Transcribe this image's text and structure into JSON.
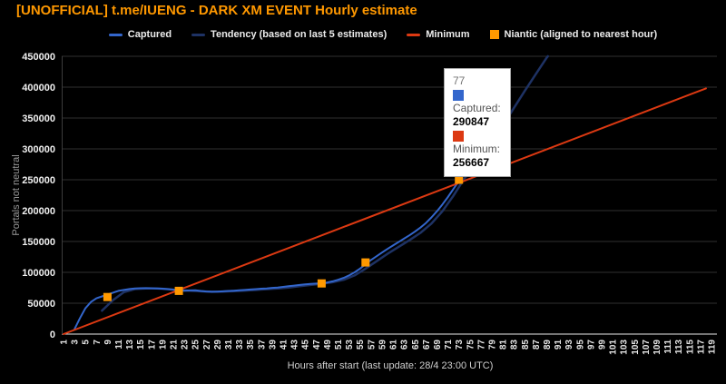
{
  "page": {
    "background": "#000000"
  },
  "title": {
    "text": "[UNOFFICIAL] t.me/IUENG - DARK XM EVENT Hourly estimate",
    "color": "#ff9800"
  },
  "tooltip": {
    "x_value": "77",
    "rows": [
      {
        "label": "Captured:",
        "value": "290847",
        "color": "#3366cc"
      },
      {
        "label": "Minimum:",
        "value": "256667",
        "color": "#dc3912"
      }
    ]
  },
  "chart_data": {
    "type": "line",
    "title": "[UNOFFICIAL] t.me/IUENG - DARK XM EVENT Hourly estimate",
    "xlabel": "Hours after start (last update: 28/4 23:00 UTC)",
    "ylabel": "Portals not neutral",
    "xlim": [
      1,
      119
    ],
    "ylim": [
      0,
      450000
    ],
    "grid": "horizontal",
    "legend_position": "top",
    "x_ticks": [
      1,
      3,
      5,
      7,
      9,
      11,
      13,
      15,
      17,
      19,
      21,
      23,
      25,
      27,
      29,
      31,
      33,
      35,
      37,
      39,
      41,
      43,
      45,
      47,
      49,
      51,
      53,
      55,
      57,
      59,
      61,
      63,
      65,
      67,
      69,
      71,
      73,
      75,
      77,
      79,
      81,
      83,
      85,
      87,
      89,
      91,
      93,
      95,
      97,
      99,
      101,
      103,
      105,
      107,
      109,
      111,
      113,
      115,
      117,
      119
    ],
    "y_ticks": [
      0,
      50000,
      100000,
      150000,
      200000,
      250000,
      300000,
      350000,
      400000,
      450000
    ],
    "series": [
      {
        "name": "Captured",
        "slug": "captured",
        "color": "#3366cc",
        "width": 2,
        "type": "line",
        "points": [
          [
            3,
            8000
          ],
          [
            4,
            26000
          ],
          [
            5,
            42000
          ],
          [
            6,
            52000
          ],
          [
            7,
            58000
          ],
          [
            8,
            61000
          ],
          [
            9,
            64000
          ],
          [
            10,
            67000
          ],
          [
            11,
            70000
          ],
          [
            12,
            71500
          ],
          [
            13,
            73000
          ],
          [
            14,
            73800
          ],
          [
            15,
            74200
          ],
          [
            16,
            74400
          ],
          [
            17,
            74300
          ],
          [
            18,
            74000
          ],
          [
            19,
            73500
          ],
          [
            20,
            72800
          ],
          [
            21,
            72000
          ],
          [
            22,
            70800
          ],
          [
            23,
            70200
          ],
          [
            24,
            70800
          ],
          [
            25,
            71000
          ],
          [
            26,
            69800
          ],
          [
            27,
            69000
          ],
          [
            28,
            68500
          ],
          [
            29,
            68800
          ],
          [
            30,
            69200
          ],
          [
            31,
            69800
          ],
          [
            32,
            70300
          ],
          [
            33,
            70900
          ],
          [
            34,
            71500
          ],
          [
            35,
            72200
          ],
          [
            36,
            72800
          ],
          [
            37,
            73500
          ],
          [
            38,
            74000
          ],
          [
            39,
            74800
          ],
          [
            40,
            75500
          ],
          [
            41,
            76500
          ],
          [
            42,
            77500
          ],
          [
            43,
            78500
          ],
          [
            44,
            79500
          ],
          [
            45,
            80500
          ],
          [
            46,
            81300
          ],
          [
            47,
            81800
          ],
          [
            48,
            82300
          ],
          [
            49,
            83500
          ],
          [
            50,
            85500
          ],
          [
            51,
            88000
          ],
          [
            52,
            91000
          ],
          [
            53,
            95000
          ],
          [
            54,
            100000
          ],
          [
            55,
            106000
          ],
          [
            56,
            113000
          ],
          [
            57,
            120000
          ],
          [
            58,
            126000
          ],
          [
            59,
            132000
          ],
          [
            60,
            138000
          ],
          [
            61,
            143500
          ],
          [
            62,
            149000
          ],
          [
            63,
            154500
          ],
          [
            64,
            160000
          ],
          [
            65,
            166000
          ],
          [
            66,
            172500
          ],
          [
            67,
            180000
          ],
          [
            68,
            189000
          ],
          [
            69,
            199000
          ],
          [
            70,
            210000
          ],
          [
            71,
            222000
          ],
          [
            72,
            235000
          ],
          [
            73,
            248000
          ],
          [
            74,
            259000
          ],
          [
            75,
            269000
          ],
          [
            76,
            280000
          ],
          [
            77,
            290847
          ]
        ]
      },
      {
        "name": "Tendency (based on last 5 estimates)",
        "slug": "tendency",
        "color": "#1e3264",
        "width": 2.5,
        "type": "line",
        "points": [
          [
            8,
            38000
          ],
          [
            10,
            55000
          ],
          [
            12,
            68000
          ],
          [
            14,
            73000
          ],
          [
            16,
            74000
          ],
          [
            18,
            74000
          ],
          [
            20,
            72800
          ],
          [
            22,
            71000
          ],
          [
            24,
            70200
          ],
          [
            26,
            69300
          ],
          [
            28,
            68500
          ],
          [
            30,
            68800
          ],
          [
            32,
            69500
          ],
          [
            34,
            70500
          ],
          [
            36,
            71500
          ],
          [
            38,
            72800
          ],
          [
            40,
            74000
          ],
          [
            42,
            75500
          ],
          [
            44,
            77500
          ],
          [
            46,
            79500
          ],
          [
            48,
            81500
          ],
          [
            50,
            84000
          ],
          [
            52,
            88000
          ],
          [
            54,
            95000
          ],
          [
            56,
            106000
          ],
          [
            58,
            118000
          ],
          [
            60,
            130000
          ],
          [
            62,
            141000
          ],
          [
            64,
            152000
          ],
          [
            66,
            164000
          ],
          [
            68,
            179000
          ],
          [
            70,
            199000
          ],
          [
            72,
            224000
          ],
          [
            74,
            252000
          ],
          [
            76,
            272000
          ],
          [
            77,
            283000
          ],
          [
            79,
            310000
          ],
          [
            81,
            338000
          ],
          [
            83,
            366000
          ],
          [
            85,
            394000
          ],
          [
            87,
            421000
          ],
          [
            89,
            448000
          ],
          [
            89.2,
            450000
          ]
        ]
      },
      {
        "name": "Minimum",
        "slug": "minimum",
        "color": "#dc3912",
        "width": 2,
        "type": "line",
        "points": [
          [
            1,
            0
          ],
          [
            118,
            398000
          ]
        ]
      },
      {
        "name": "Niantic (aligned to nearest hour)",
        "slug": "niantic",
        "color": "#ff9900",
        "type": "scatter-square",
        "points": [
          [
            9,
            60000
          ],
          [
            22,
            70000
          ],
          [
            48,
            82000
          ],
          [
            56,
            116000
          ],
          [
            73,
            250000
          ]
        ]
      }
    ],
    "highlighted_point": {
      "x": 77,
      "captured": 290847,
      "minimum": 256667
    }
  }
}
